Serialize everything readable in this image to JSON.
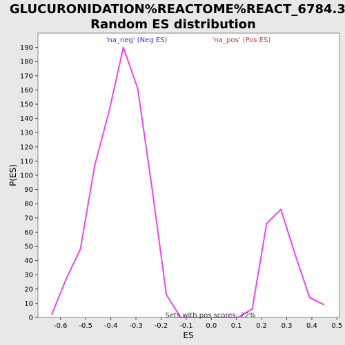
{
  "chart_data": {
    "type": "line",
    "title_line1": "GLUCURONIDATION%REACTOME%REACT_6784.3:",
    "title_line2": "Random ES distribution",
    "xlabel": "ES",
    "ylabel": "P(ES)",
    "xlim": [
      -0.69,
      0.51
    ],
    "ylim": [
      0,
      200
    ],
    "x_ticks": [
      -0.6,
      -0.5,
      -0.4,
      -0.3,
      -0.2,
      -0.1,
      0.0,
      0.1,
      0.2,
      0.3,
      0.4,
      0.5
    ],
    "x_tick_labels": [
      "-0.6",
      "-0.5",
      "-0.4",
      "-0.3",
      "-0.2",
      "-0.1",
      "0.0",
      "0.1",
      "0.2",
      "0.3",
      "0.4",
      "0.5"
    ],
    "y_ticks": [
      0,
      10,
      20,
      30,
      40,
      50,
      60,
      70,
      80,
      90,
      100,
      110,
      120,
      130,
      140,
      150,
      160,
      170,
      180,
      190
    ],
    "grid": false,
    "legend": [
      {
        "label": "'na_neg' (Neg ES)",
        "color": "#3333cc"
      },
      {
        "label": "'na_pos' (Pos ES)",
        "color": "#cc3333"
      }
    ],
    "series": [
      {
        "color": "#ee44ee",
        "x": [
          -0.635,
          -0.578,
          -0.521,
          -0.464,
          -0.407,
          -0.35,
          -0.293,
          -0.236,
          -0.179,
          -0.122,
          -0.065,
          -0.008,
          0.049,
          0.106,
          0.163,
          0.22,
          0.277,
          0.334,
          0.391,
          0.448
        ],
        "y": [
          2,
          27,
          48,
          107,
          145,
          190,
          161,
          91,
          16,
          0,
          0,
          0,
          0,
          0,
          6,
          66,
          76,
          44,
          14,
          9
        ]
      }
    ],
    "annotation": "Sets with pos scores: 22%"
  }
}
